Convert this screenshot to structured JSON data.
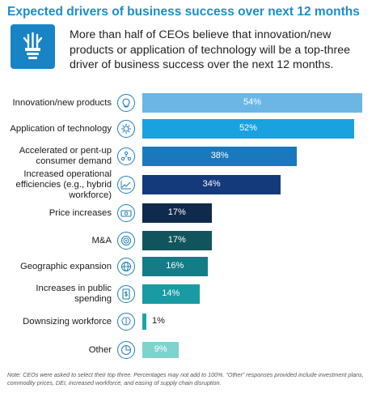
{
  "title": "Expected drivers of business success over next 12 months",
  "intro": {
    "icon": "lightbulb-icon",
    "text": "More than half of CEOs believe that innovation/new products or application of technology will be a top-three driver of business success over the next 12 months."
  },
  "chart_data": {
    "type": "bar",
    "orientation": "horizontal",
    "title": "Expected drivers of business success over next 12 months",
    "categories": [
      "Innovation/new products",
      "Application of technology",
      "Accelerated or pent-up consumer demand",
      "Increased operational efficiencies (e.g., hybrid workforce)",
      "Price increases",
      "M&A",
      "Geographic expansion",
      "Increases in public spending",
      "Downsizing workforce",
      "Other"
    ],
    "values": [
      54,
      52,
      38,
      34,
      17,
      17,
      16,
      14,
      1,
      9
    ],
    "value_labels": [
      "54%",
      "52%",
      "38%",
      "34%",
      "17%",
      "17%",
      "16%",
      "14%",
      "1%",
      "9%"
    ],
    "icons": [
      "lightbulb-icon",
      "gear-bulb-icon",
      "people-network-icon",
      "trend-line-icon",
      "money-icon",
      "target-icon",
      "globe-icon",
      "document-dollar-icon",
      "brain-icon",
      "pie-chart-icon"
    ],
    "colors": [
      "#6cb6e6",
      "#1aa1df",
      "#1a78bd",
      "#143a7c",
      "#0f2a4d",
      "#11545e",
      "#137c87",
      "#1a9aa2",
      "#1aa6a6",
      "#7ed3cf"
    ]
  },
  "note": "Note: CEOs were asked to select their top three. Percentages may not add to 100%. “Other” responses provided include investment plans, commodity prices, DEI, increased workforce, and easing of supply chain disruption."
}
